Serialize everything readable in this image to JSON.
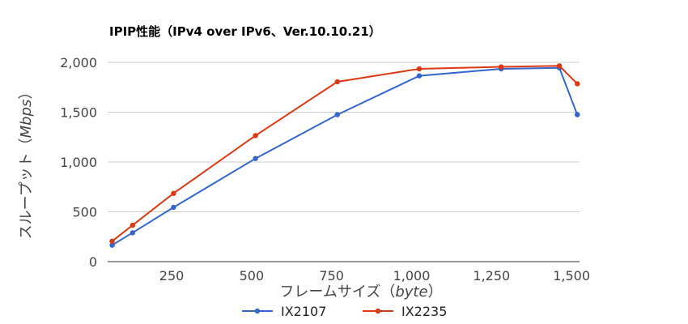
{
  "chart_data": {
    "type": "line",
    "title": "IPIP性能（IPv4 over IPv6、Ver.10.10.21）",
    "xlabel": {
      "main": "フレームサイズ（",
      "italic": "byte",
      "tail": "）"
    },
    "ylabel": {
      "main": "スループット（",
      "italic": "Mbps",
      "tail": "）"
    },
    "x": [
      64,
      128,
      256,
      512,
      768,
      1024,
      1280,
      1462,
      1518
    ],
    "series": [
      {
        "name": "IX2107",
        "color": "#3366cc",
        "values": [
          165,
          290,
          545,
          1035,
          1475,
          1865,
          1935,
          1945,
          1475
        ]
      },
      {
        "name": "IX2235",
        "color": "#dc3912",
        "values": [
          205,
          365,
          685,
          1265,
          1805,
          1935,
          1955,
          1965,
          1785
        ]
      }
    ],
    "xlim": [
      50,
      1525
    ],
    "ylim": [
      0,
      2000
    ],
    "x_ticks": [
      250,
      500,
      750,
      1000,
      1250,
      1500
    ],
    "x_tick_labels": [
      "250",
      "500",
      "750",
      "1,000",
      "1,250",
      "1,500"
    ],
    "y_ticks": [
      0,
      500,
      1000,
      1500,
      2000
    ],
    "y_tick_labels": [
      "0",
      "500",
      "1,000",
      "1,500",
      "2,000"
    ],
    "grid": "horizontal",
    "legend_position": "bottom"
  }
}
